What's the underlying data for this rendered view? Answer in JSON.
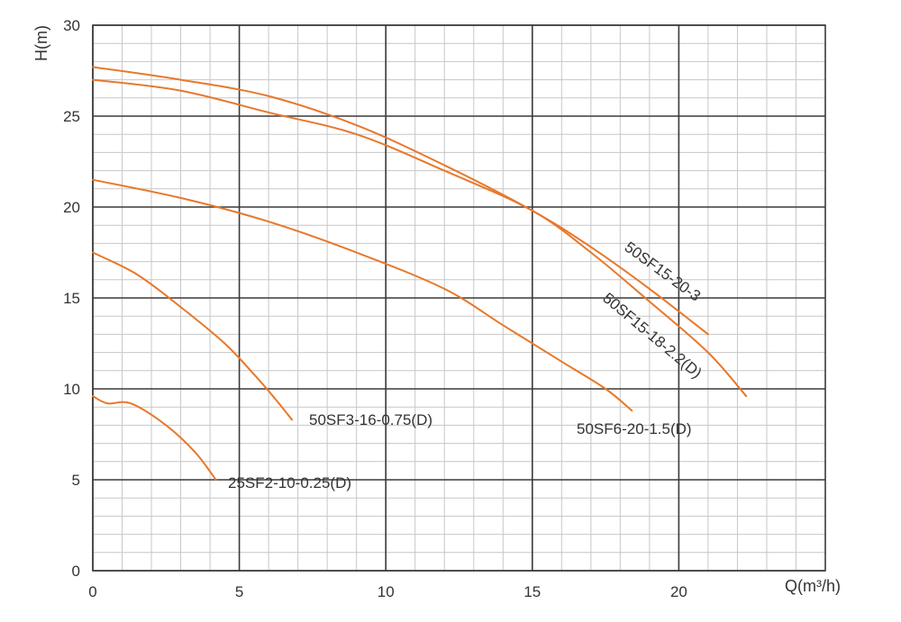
{
  "chart_data": {
    "type": "line",
    "xlabel": "Q(m³/h)",
    "ylabel": "H(m)",
    "xlim": [
      0,
      25
    ],
    "ylim": [
      0,
      30
    ],
    "x_ticks": [
      "0",
      "5",
      "10",
      "15",
      "20"
    ],
    "y_ticks": [
      "0",
      "5",
      "10",
      "15",
      "20",
      "25",
      "30"
    ],
    "grid": true,
    "legend": "none",
    "line_color": "#e8782a",
    "series": [
      {
        "name": "25SF2-10-0.25(D)",
        "points": [
          [
            0,
            9.6
          ],
          [
            0.5,
            9.2
          ],
          [
            1.3,
            9.2
          ],
          [
            2.5,
            8.0
          ],
          [
            3.5,
            6.5
          ],
          [
            4.2,
            5.0
          ]
        ]
      },
      {
        "name": "50SF3-16-0.75(D)",
        "points": [
          [
            0,
            17.5
          ],
          [
            1.5,
            16.3
          ],
          [
            3.0,
            14.5
          ],
          [
            4.5,
            12.5
          ],
          [
            5.5,
            10.8
          ],
          [
            6.2,
            9.5
          ],
          [
            6.8,
            8.3
          ]
        ]
      },
      {
        "name": "50SF6-20-1.5(D)",
        "points": [
          [
            0,
            21.5
          ],
          [
            3.0,
            20.5
          ],
          [
            6.0,
            19.2
          ],
          [
            9.0,
            17.5
          ],
          [
            12.0,
            15.5
          ],
          [
            14.0,
            13.5
          ],
          [
            16.0,
            11.5
          ],
          [
            17.5,
            10.0
          ],
          [
            18.4,
            8.8
          ]
        ]
      },
      {
        "name": "50SF15-18-2.2(D)",
        "points": [
          [
            0,
            27.0
          ],
          [
            3.0,
            26.4
          ],
          [
            6.0,
            25.2
          ],
          [
            9.0,
            24.0
          ],
          [
            12.0,
            22.0
          ],
          [
            15.0,
            19.8
          ],
          [
            17.0,
            17.5
          ],
          [
            19.0,
            14.8
          ],
          [
            21.0,
            12.0
          ],
          [
            22.3,
            9.6
          ]
        ]
      },
      {
        "name": "50SF15-20-3",
        "points": [
          [
            0,
            27.7
          ],
          [
            3.0,
            27.0
          ],
          [
            6.0,
            26.1
          ],
          [
            9.0,
            24.5
          ],
          [
            12.0,
            22.3
          ],
          [
            15.0,
            19.8
          ],
          [
            17.0,
            17.8
          ],
          [
            19.0,
            15.5
          ],
          [
            21.0,
            13.0
          ]
        ]
      }
    ]
  }
}
